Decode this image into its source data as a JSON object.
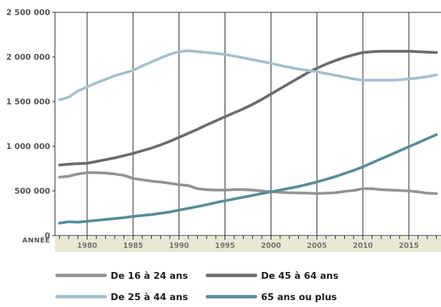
{
  "chart_data": {
    "type": "line",
    "x_axis_title": "ANNÉE",
    "x_tick_labels": [
      "1980",
      "1985",
      "1990",
      "1995",
      "2000",
      "2005",
      "2010",
      "2015"
    ],
    "y_tick_labels": [
      "0",
      "500 000",
      "1 000 000",
      "1 500 000",
      "2 000 000",
      "2 500 000"
    ],
    "y_ticks": [
      0,
      500000,
      1000000,
      1500000,
      2000000,
      2500000
    ],
    "xlim": [
      1976.5,
      2018.5
    ],
    "ylim": [
      0,
      2500000
    ],
    "grid": "vertical",
    "legend_position": "bottom",
    "series": [
      {
        "name": "De 16 à 24 ans",
        "color": "#939490",
        "points": [
          [
            1977,
            655000
          ],
          [
            1978,
            665000
          ],
          [
            1979,
            690000
          ],
          [
            1980,
            705000
          ],
          [
            1981,
            705000
          ],
          [
            1982,
            700000
          ],
          [
            1983,
            690000
          ],
          [
            1984,
            675000
          ],
          [
            1985,
            640000
          ],
          [
            1986,
            625000
          ],
          [
            1987,
            610000
          ],
          [
            1988,
            600000
          ],
          [
            1989,
            585000
          ],
          [
            1990,
            570000
          ],
          [
            1991,
            560000
          ],
          [
            1992,
            525000
          ],
          [
            1993,
            515000
          ],
          [
            1994,
            510000
          ],
          [
            1995,
            510000
          ],
          [
            1996,
            515000
          ],
          [
            1997,
            515000
          ],
          [
            1998,
            510000
          ],
          [
            1999,
            500000
          ],
          [
            2000,
            490000
          ],
          [
            2001,
            485000
          ],
          [
            2002,
            480000
          ],
          [
            2003,
            478000
          ],
          [
            2004,
            475000
          ],
          [
            2005,
            470000
          ],
          [
            2006,
            475000
          ],
          [
            2007,
            480000
          ],
          [
            2008,
            495000
          ],
          [
            2009,
            505000
          ],
          [
            2010,
            525000
          ],
          [
            2011,
            525000
          ],
          [
            2012,
            515000
          ],
          [
            2013,
            510000
          ],
          [
            2014,
            505000
          ],
          [
            2015,
            500000
          ],
          [
            2016,
            490000
          ],
          [
            2017,
            475000
          ],
          [
            2018,
            470000
          ]
        ]
      },
      {
        "name": "De 45 à 64 ans",
        "color": "#6b6b68",
        "points": [
          [
            1977,
            790000
          ],
          [
            1978,
            800000
          ],
          [
            1979,
            805000
          ],
          [
            1980,
            810000
          ],
          [
            1981,
            830000
          ],
          [
            1982,
            850000
          ],
          [
            1983,
            870000
          ],
          [
            1984,
            895000
          ],
          [
            1985,
            920000
          ],
          [
            1986,
            950000
          ],
          [
            1987,
            980000
          ],
          [
            1988,
            1015000
          ],
          [
            1989,
            1055000
          ],
          [
            1990,
            1100000
          ],
          [
            1991,
            1145000
          ],
          [
            1992,
            1190000
          ],
          [
            1993,
            1240000
          ],
          [
            1994,
            1285000
          ],
          [
            1995,
            1330000
          ],
          [
            1996,
            1375000
          ],
          [
            1997,
            1420000
          ],
          [
            1998,
            1470000
          ],
          [
            1999,
            1525000
          ],
          [
            2000,
            1585000
          ],
          [
            2001,
            1645000
          ],
          [
            2002,
            1705000
          ],
          [
            2003,
            1765000
          ],
          [
            2004,
            1825000
          ],
          [
            2005,
            1875000
          ],
          [
            2006,
            1920000
          ],
          [
            2007,
            1960000
          ],
          [
            2008,
            1995000
          ],
          [
            2009,
            2025000
          ],
          [
            2010,
            2050000
          ],
          [
            2011,
            2060000
          ],
          [
            2012,
            2065000
          ],
          [
            2013,
            2065000
          ],
          [
            2014,
            2065000
          ],
          [
            2015,
            2065000
          ],
          [
            2016,
            2060000
          ],
          [
            2017,
            2055000
          ],
          [
            2018,
            2050000
          ]
        ]
      },
      {
        "name": "De 25 à 44 ans",
        "color": "#a6c0cc",
        "points": [
          [
            1977,
            1520000
          ],
          [
            1978,
            1550000
          ],
          [
            1979,
            1620000
          ],
          [
            1980,
            1665000
          ],
          [
            1981,
            1710000
          ],
          [
            1982,
            1750000
          ],
          [
            1983,
            1790000
          ],
          [
            1984,
            1820000
          ],
          [
            1985,
            1850000
          ],
          [
            1986,
            1900000
          ],
          [
            1987,
            1945000
          ],
          [
            1988,
            1990000
          ],
          [
            1989,
            2030000
          ],
          [
            1990,
            2060000
          ],
          [
            1991,
            2070000
          ],
          [
            1992,
            2060000
          ],
          [
            1993,
            2050000
          ],
          [
            1994,
            2040000
          ],
          [
            1995,
            2030000
          ],
          [
            1996,
            2010000
          ],
          [
            1997,
            1990000
          ],
          [
            1998,
            1970000
          ],
          [
            1999,
            1950000
          ],
          [
            2000,
            1930000
          ],
          [
            2001,
            1905000
          ],
          [
            2002,
            1885000
          ],
          [
            2003,
            1865000
          ],
          [
            2004,
            1850000
          ],
          [
            2005,
            1835000
          ],
          [
            2006,
            1815000
          ],
          [
            2007,
            1795000
          ],
          [
            2008,
            1775000
          ],
          [
            2009,
            1755000
          ],
          [
            2010,
            1740000
          ],
          [
            2011,
            1740000
          ],
          [
            2012,
            1740000
          ],
          [
            2013,
            1740000
          ],
          [
            2014,
            1745000
          ],
          [
            2015,
            1755000
          ],
          [
            2016,
            1765000
          ],
          [
            2017,
            1780000
          ],
          [
            2018,
            1800000
          ]
        ]
      },
      {
        "name": "65 ans ou plus",
        "color": "#5a8c98",
        "points": [
          [
            1977,
            140000
          ],
          [
            1978,
            155000
          ],
          [
            1979,
            150000
          ],
          [
            1980,
            160000
          ],
          [
            1981,
            170000
          ],
          [
            1982,
            180000
          ],
          [
            1983,
            190000
          ],
          [
            1984,
            200000
          ],
          [
            1985,
            215000
          ],
          [
            1986,
            225000
          ],
          [
            1987,
            235000
          ],
          [
            1988,
            250000
          ],
          [
            1989,
            265000
          ],
          [
            1990,
            285000
          ],
          [
            1991,
            305000
          ],
          [
            1992,
            325000
          ],
          [
            1993,
            345000
          ],
          [
            1994,
            370000
          ],
          [
            1995,
            390000
          ],
          [
            1996,
            410000
          ],
          [
            1997,
            430000
          ],
          [
            1998,
            450000
          ],
          [
            1999,
            470000
          ],
          [
            2000,
            490000
          ],
          [
            2001,
            510000
          ],
          [
            2002,
            530000
          ],
          [
            2003,
            550000
          ],
          [
            2004,
            575000
          ],
          [
            2005,
            600000
          ],
          [
            2006,
            630000
          ],
          [
            2007,
            660000
          ],
          [
            2008,
            695000
          ],
          [
            2009,
            730000
          ],
          [
            2010,
            770000
          ],
          [
            2011,
            815000
          ],
          [
            2012,
            860000
          ],
          [
            2013,
            905000
          ],
          [
            2014,
            950000
          ],
          [
            2015,
            995000
          ],
          [
            2016,
            1040000
          ],
          [
            2017,
            1085000
          ],
          [
            2018,
            1130000
          ]
        ]
      }
    ]
  }
}
